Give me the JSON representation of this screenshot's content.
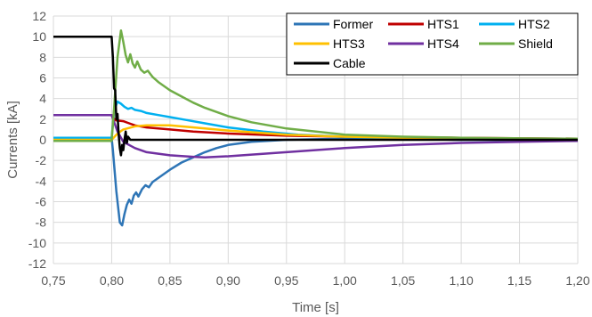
{
  "chart_data": {
    "type": "line",
    "xlabel": "Time [s]",
    "ylabel": "Currents [kA]",
    "xlim": [
      0.75,
      1.2
    ],
    "ylim": [
      -12,
      12
    ],
    "x_ticks": [
      "0,75",
      "0,80",
      "0,85",
      "0,90",
      "0,95",
      "1,00",
      "1,05",
      "1,10",
      "1,15",
      "1,20"
    ],
    "x_tick_values": [
      0.75,
      0.8,
      0.85,
      0.9,
      0.95,
      1.0,
      1.05,
      1.1,
      1.15,
      1.2
    ],
    "y_ticks": [
      "12",
      "10",
      "8",
      "6",
      "4",
      "2",
      "0",
      "-2",
      "-4",
      "-6",
      "-8",
      "-10",
      "-12"
    ],
    "y_tick_values": [
      12,
      10,
      8,
      6,
      4,
      2,
      0,
      -2,
      -4,
      -6,
      -8,
      -10,
      -12
    ],
    "grid": true,
    "legend_position": "top-right",
    "series": [
      {
        "name": "Former",
        "color": "#2e75b6",
        "points": [
          [
            0.75,
            0.2
          ],
          [
            0.8,
            0.2
          ],
          [
            0.801,
            -1.0
          ],
          [
            0.804,
            -5.0
          ],
          [
            0.807,
            -8.0
          ],
          [
            0.809,
            -8.3
          ],
          [
            0.811,
            -7.2
          ],
          [
            0.813,
            -6.3
          ],
          [
            0.815,
            -5.8
          ],
          [
            0.817,
            -6.2
          ],
          [
            0.819,
            -5.4
          ],
          [
            0.821,
            -5.1
          ],
          [
            0.823,
            -5.5
          ],
          [
            0.826,
            -4.8
          ],
          [
            0.829,
            -4.4
          ],
          [
            0.832,
            -4.6
          ],
          [
            0.835,
            -4.1
          ],
          [
            0.84,
            -3.7
          ],
          [
            0.85,
            -2.9
          ],
          [
            0.86,
            -2.2
          ],
          [
            0.87,
            -1.7
          ],
          [
            0.88,
            -1.2
          ],
          [
            0.89,
            -0.8
          ],
          [
            0.9,
            -0.5
          ],
          [
            0.92,
            -0.2
          ],
          [
            0.95,
            0.0
          ],
          [
            1.0,
            0.1
          ],
          [
            1.1,
            0.1
          ],
          [
            1.2,
            0.1
          ]
        ]
      },
      {
        "name": "HTS1",
        "color": "#c00000",
        "points": [
          [
            0.75,
            2.4
          ],
          [
            0.8,
            2.4
          ],
          [
            0.803,
            1.9
          ],
          [
            0.81,
            1.8
          ],
          [
            0.815,
            1.6
          ],
          [
            0.82,
            1.4
          ],
          [
            0.83,
            1.2
          ],
          [
            0.85,
            1.0
          ],
          [
            0.87,
            0.8
          ],
          [
            0.9,
            0.6
          ],
          [
            0.95,
            0.4
          ],
          [
            1.0,
            0.3
          ],
          [
            1.1,
            0.2
          ],
          [
            1.2,
            0.1
          ]
        ]
      },
      {
        "name": "HTS2",
        "color": "#00b0f0",
        "points": [
          [
            0.75,
            0.2
          ],
          [
            0.8,
            0.2
          ],
          [
            0.802,
            2.8
          ],
          [
            0.805,
            3.7
          ],
          [
            0.808,
            3.5
          ],
          [
            0.811,
            3.2
          ],
          [
            0.814,
            3.0
          ],
          [
            0.817,
            3.1
          ],
          [
            0.82,
            2.9
          ],
          [
            0.825,
            2.8
          ],
          [
            0.83,
            2.6
          ],
          [
            0.84,
            2.4
          ],
          [
            0.85,
            2.2
          ],
          [
            0.86,
            2.0
          ],
          [
            0.88,
            1.6
          ],
          [
            0.9,
            1.2
          ],
          [
            0.93,
            0.8
          ],
          [
            0.96,
            0.5
          ],
          [
            1.0,
            0.3
          ],
          [
            1.05,
            0.1
          ],
          [
            1.1,
            0.0
          ],
          [
            1.2,
            0.0
          ]
        ]
      },
      {
        "name": "HTS3",
        "color": "#ffc000",
        "points": [
          [
            0.75,
            0.0
          ],
          [
            0.8,
            0.0
          ],
          [
            0.805,
            0.6
          ],
          [
            0.81,
            1.0
          ],
          [
            0.82,
            1.3
          ],
          [
            0.83,
            1.4
          ],
          [
            0.85,
            1.4
          ],
          [
            0.88,
            1.1
          ],
          [
            0.9,
            0.9
          ],
          [
            0.95,
            0.5
          ],
          [
            1.0,
            0.3
          ],
          [
            1.05,
            0.2
          ],
          [
            1.1,
            0.1
          ],
          [
            1.2,
            0.0
          ]
        ]
      },
      {
        "name": "HTS4",
        "color": "#7030a0",
        "points": [
          [
            0.75,
            2.4
          ],
          [
            0.8,
            2.4
          ],
          [
            0.805,
            0.8
          ],
          [
            0.81,
            -0.2
          ],
          [
            0.82,
            -0.8
          ],
          [
            0.83,
            -1.2
          ],
          [
            0.85,
            -1.5
          ],
          [
            0.87,
            -1.65
          ],
          [
            0.88,
            -1.7
          ],
          [
            0.9,
            -1.6
          ],
          [
            0.95,
            -1.2
          ],
          [
            1.0,
            -0.8
          ],
          [
            1.05,
            -0.5
          ],
          [
            1.1,
            -0.3
          ],
          [
            1.15,
            -0.2
          ],
          [
            1.2,
            -0.1
          ]
        ]
      },
      {
        "name": "Shield",
        "color": "#70ad47",
        "points": [
          [
            0.75,
            -0.1
          ],
          [
            0.8,
            -0.1
          ],
          [
            0.802,
            3.0
          ],
          [
            0.805,
            8.0
          ],
          [
            0.808,
            10.6
          ],
          [
            0.81,
            9.5
          ],
          [
            0.812,
            8.2
          ],
          [
            0.814,
            7.5
          ],
          [
            0.816,
            8.3
          ],
          [
            0.818,
            7.4
          ],
          [
            0.82,
            7.0
          ],
          [
            0.822,
            7.6
          ],
          [
            0.825,
            6.8
          ],
          [
            0.828,
            6.5
          ],
          [
            0.831,
            6.7
          ],
          [
            0.835,
            6.1
          ],
          [
            0.84,
            5.6
          ],
          [
            0.85,
            4.8
          ],
          [
            0.86,
            4.2
          ],
          [
            0.87,
            3.6
          ],
          [
            0.88,
            3.1
          ],
          [
            0.9,
            2.3
          ],
          [
            0.92,
            1.7
          ],
          [
            0.95,
            1.1
          ],
          [
            1.0,
            0.5
          ],
          [
            1.05,
            0.3
          ],
          [
            1.1,
            0.2
          ],
          [
            1.2,
            0.1
          ]
        ]
      },
      {
        "name": "Cable",
        "color": "#000000",
        "points": [
          [
            0.75,
            10.0
          ],
          [
            0.8,
            10.0
          ],
          [
            0.801,
            8.0
          ],
          [
            0.802,
            5.0
          ],
          [
            0.803,
            4.8
          ],
          [
            0.804,
            2.0
          ],
          [
            0.805,
            2.5
          ],
          [
            0.806,
            0.5
          ],
          [
            0.807,
            -0.8
          ],
          [
            0.808,
            -1.5
          ],
          [
            0.809,
            -0.5
          ],
          [
            0.81,
            -1.0
          ],
          [
            0.811,
            0.0
          ],
          [
            0.812,
            0.8
          ],
          [
            0.813,
            -0.3
          ],
          [
            0.814,
            0.3
          ],
          [
            0.816,
            0.0
          ],
          [
            0.82,
            0.0
          ],
          [
            0.9,
            0.0
          ],
          [
            1.0,
            0.0
          ],
          [
            1.2,
            0.0
          ]
        ]
      }
    ]
  }
}
